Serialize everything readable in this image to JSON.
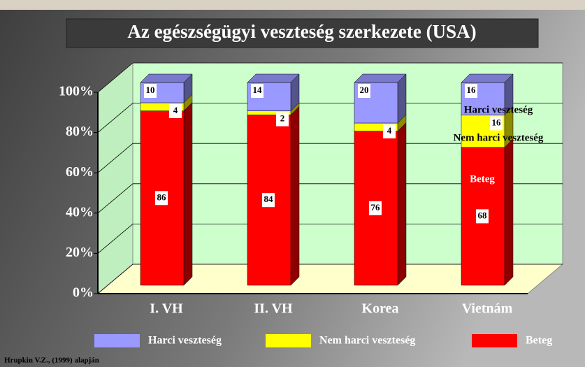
{
  "chart_data": {
    "type": "bar3d-stacked",
    "title": "Az egészségügyi veszteség szerkezete (USA)",
    "categories": [
      "I. VH",
      "II. VH",
      "Korea",
      "Vietnám"
    ],
    "series": [
      {
        "name": "Beteg",
        "color": "#ff0000",
        "values": [
          86,
          84,
          76,
          68
        ]
      },
      {
        "name": "Nem harci veszteség",
        "color": "#ffff00",
        "values": [
          4,
          2,
          4,
          16
        ]
      },
      {
        "name": "Harci veszteség",
        "color": "#9999ff",
        "values": [
          10,
          14,
          20,
          16
        ]
      }
    ],
    "ylim": [
      0,
      100
    ],
    "yticks": [
      {
        "value": 0,
        "label": "0%"
      },
      {
        "value": 20,
        "label": "20%"
      },
      {
        "value": 40,
        "label": "40%"
      },
      {
        "value": 60,
        "label": "60%"
      },
      {
        "value": 80,
        "label": "80%"
      },
      {
        "value": 100,
        "label": "100%"
      }
    ],
    "grid": true,
    "annotations": [
      "Harci veszteség",
      "Nem harci veszteség",
      "Beteg"
    ],
    "source": "Hrupkin V.Z., (1999) alapján"
  }
}
